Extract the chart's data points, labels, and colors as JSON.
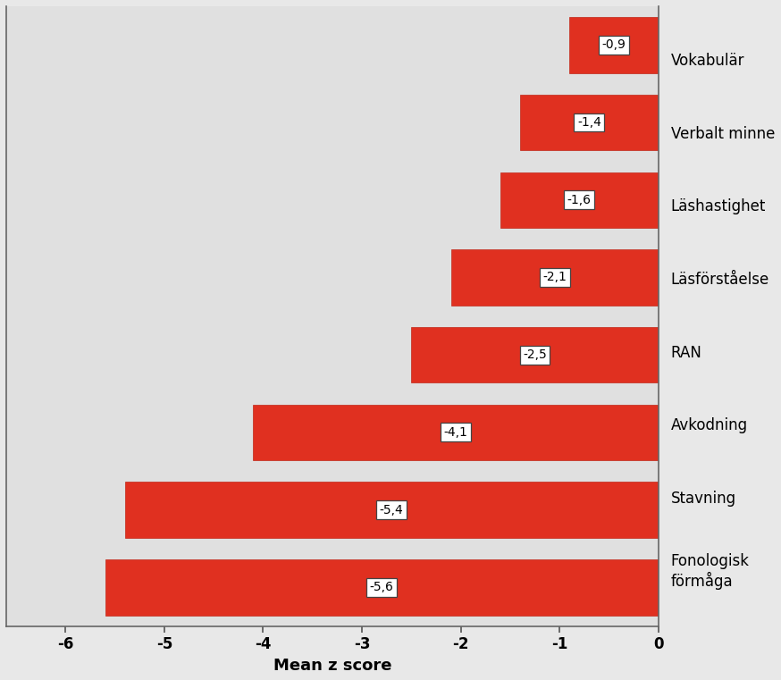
{
  "categories": [
    "Fonologisk\nförmåga",
    "Stavning",
    "Avkodning",
    "RAN",
    "Läsförståelse",
    "Läshastighet",
    "Verbalt minne",
    "Vokabulär"
  ],
  "values": [
    -5.6,
    -5.4,
    -4.1,
    -2.5,
    -2.1,
    -1.6,
    -1.4,
    -0.9
  ],
  "labels": [
    "-5,6",
    "-5,4",
    "-4,1",
    "-2,5",
    "-2,1",
    "-1,6",
    "-1,4",
    "-0,9"
  ],
  "bar_color": "#e03020",
  "bar_edgecolor": "#c02818",
  "background_color": "#e8e8e8",
  "plot_bg_color": "#e0e0e0",
  "xlabel": "Mean z score",
  "xlim": [
    -6.6,
    0.0
  ],
  "xticks": [
    -6,
    -5,
    -4,
    -3,
    -2,
    -1,
    0
  ],
  "xtick_labels": [
    "-6",
    "-5",
    "-4",
    "-3",
    "-2",
    "-1",
    "0"
  ],
  "xlabel_fontsize": 13,
  "tick_fontsize": 12,
  "label_fontsize": 10,
  "category_fontsize": 12,
  "bar_height": 0.72
}
